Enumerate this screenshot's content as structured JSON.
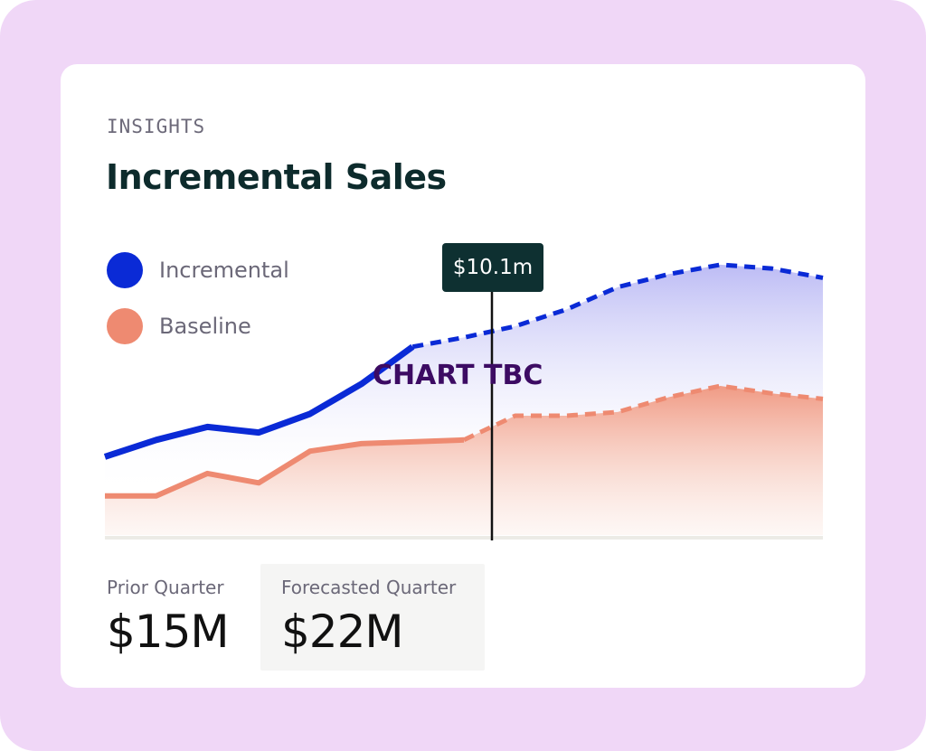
{
  "card": {
    "eyebrow": "INSIGHTS",
    "title": "Incremental Sales"
  },
  "legend": [
    {
      "label": "Incremental",
      "color": "#0a2ad6"
    },
    {
      "label": "Baseline",
      "color": "#ee8a71"
    }
  ],
  "tooltip": {
    "text": "$10.1m"
  },
  "overlay": {
    "text": "CHART TBC"
  },
  "kpis": [
    {
      "label": "Prior Quarter",
      "value": "$15M"
    },
    {
      "label": "Forecasted Quarter",
      "value": "$22M"
    }
  ],
  "chart_data": {
    "type": "area",
    "x": [
      0,
      1,
      2,
      3,
      4,
      5,
      6,
      7,
      8,
      9,
      10,
      11,
      12,
      13,
      14
    ],
    "split_index": 7,
    "series": [
      {
        "name": "Incremental",
        "color": "#0a2ad6",
        "values": [
          4.2,
          5.1,
          5.8,
          5.5,
          6.5,
          8.1,
          10.1,
          10.6,
          11.2,
          12.1,
          13.3,
          14.0,
          14.5,
          14.3,
          13.8
        ]
      },
      {
        "name": "Baseline",
        "color": "#ee8a71",
        "values": [
          2.1,
          2.1,
          3.3,
          2.8,
          4.5,
          4.9,
          5.0,
          5.1,
          6.4,
          6.4,
          6.6,
          7.4,
          8.0,
          7.6,
          7.3
        ]
      }
    ],
    "ylim": [
      0,
      16
    ],
    "grid": false,
    "legend_position": "top-left"
  }
}
